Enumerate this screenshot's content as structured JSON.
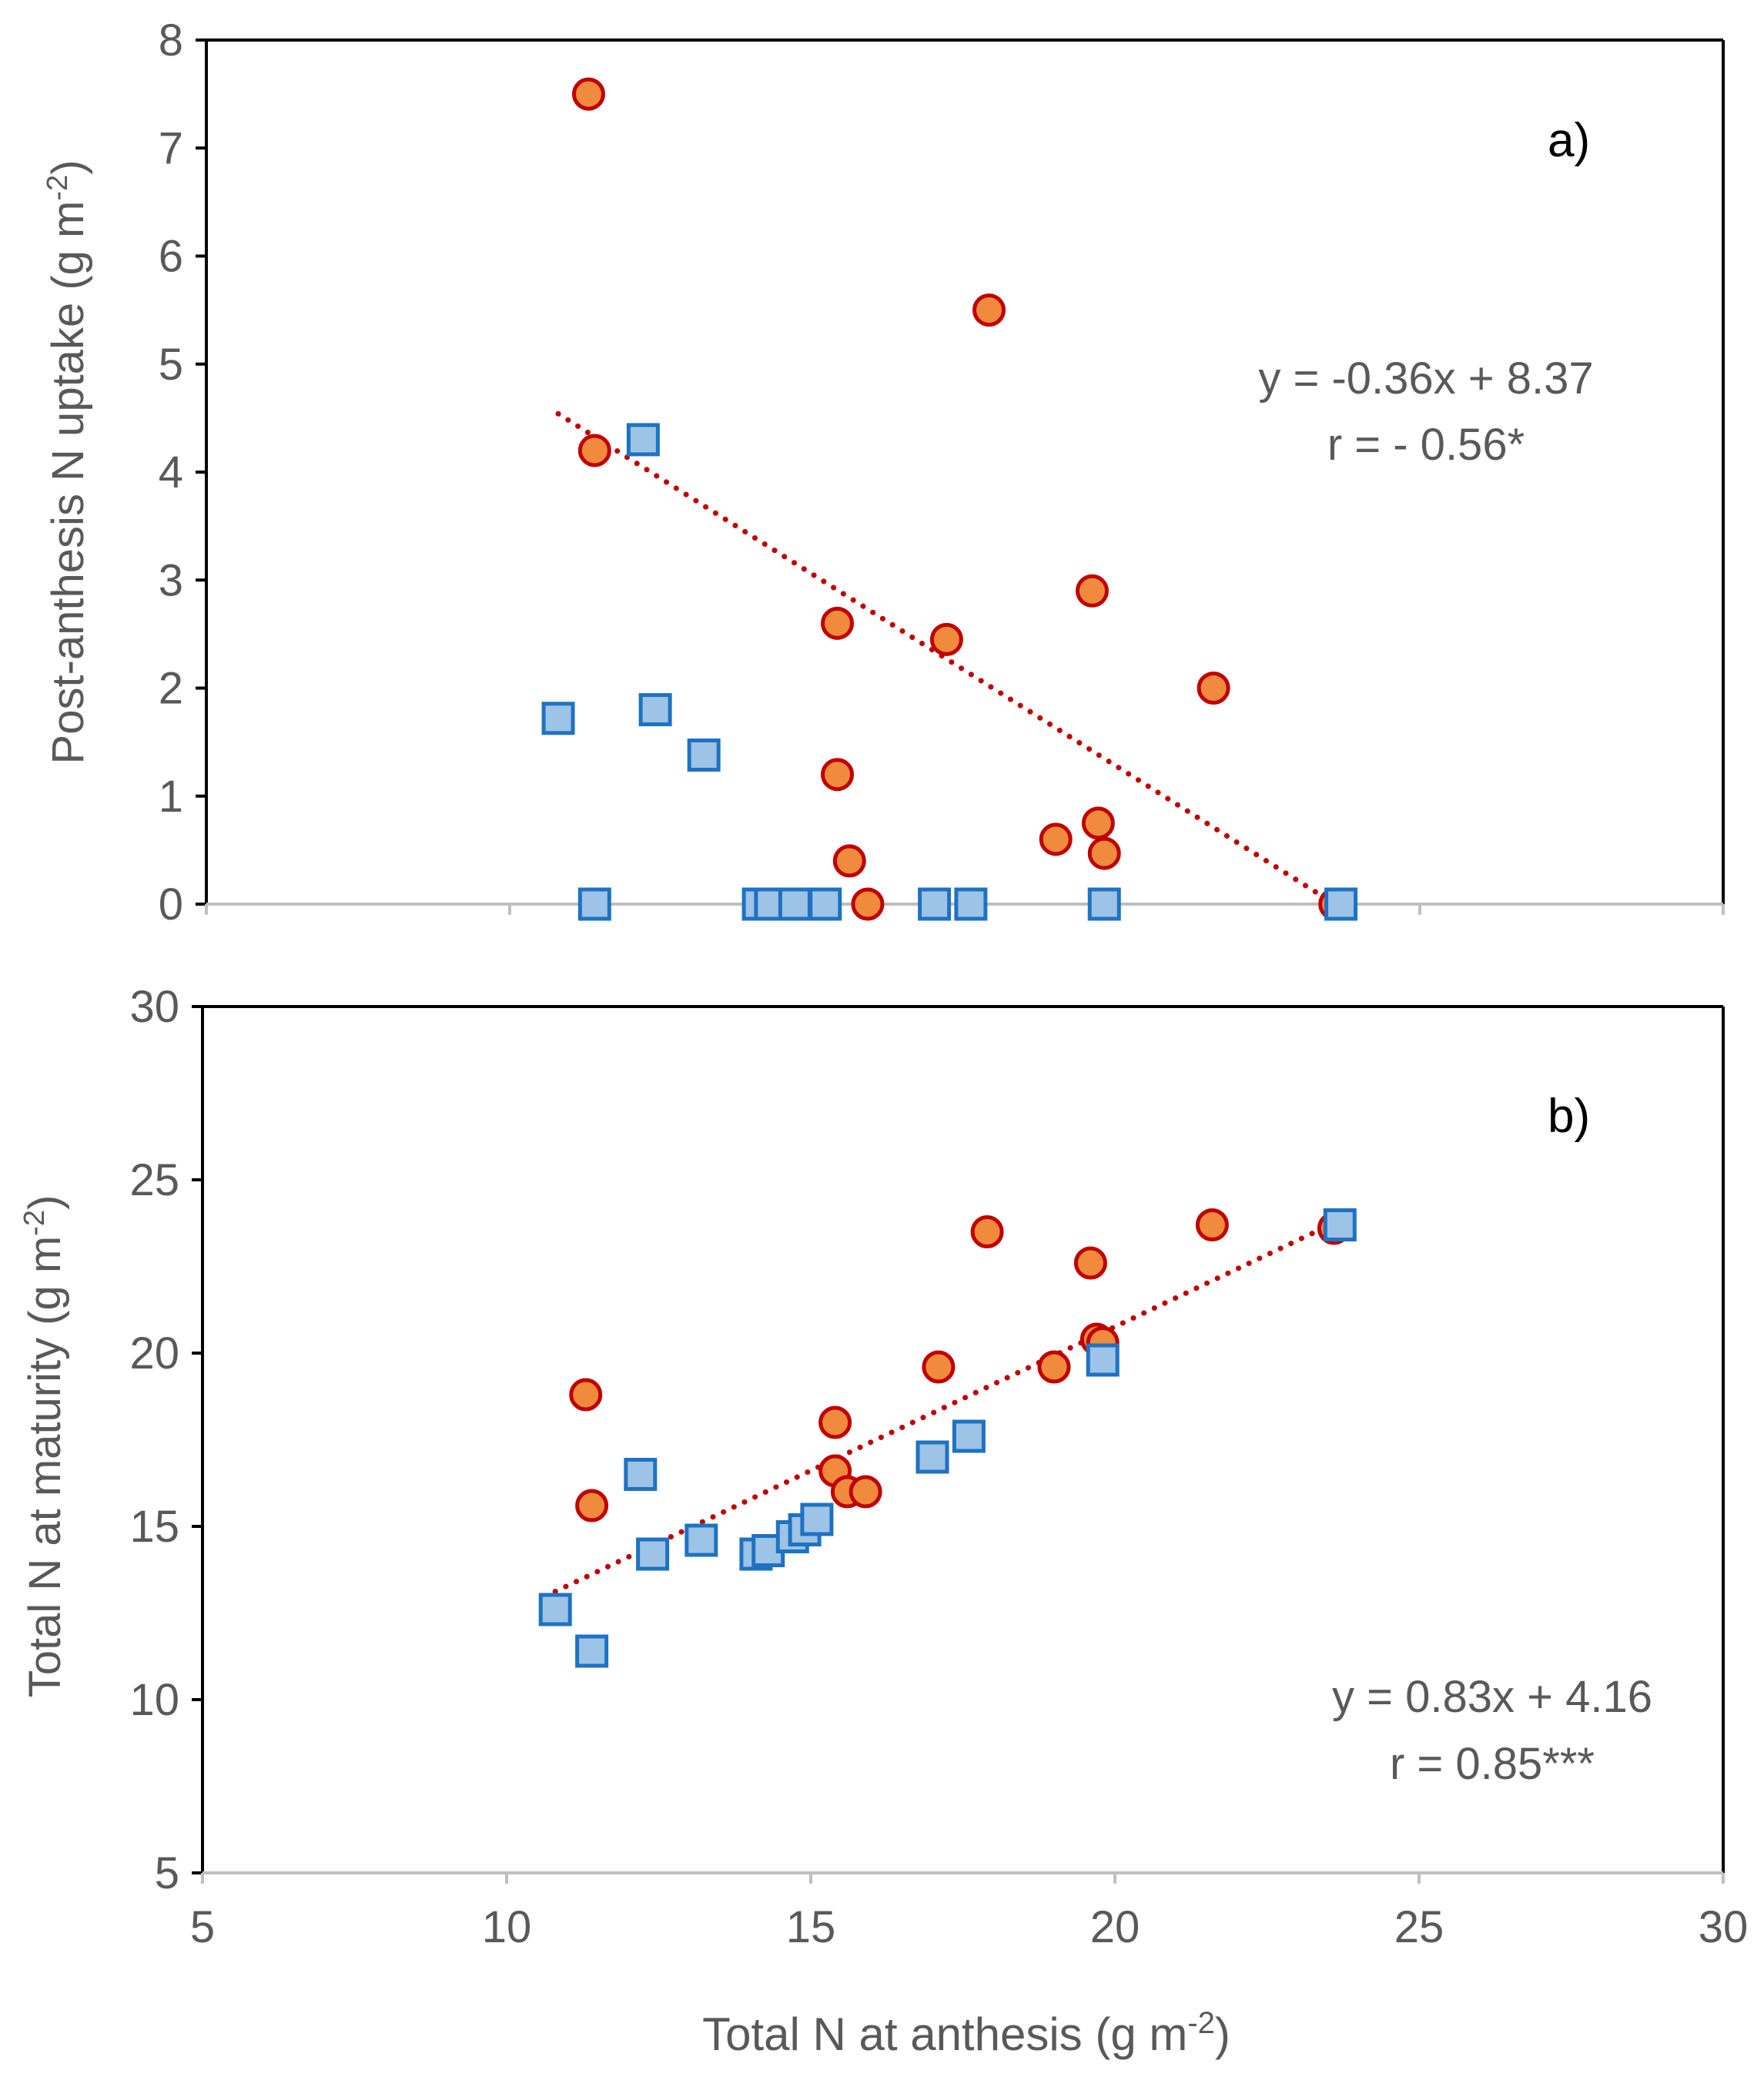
{
  "colors": {
    "circle_fill": "#f08a3c",
    "circle_stroke": "#c00000",
    "square_fill": "#9dc3e6",
    "square_stroke": "#1f72c2",
    "trendline": "#c00000",
    "axis_text": "#595959",
    "frame": "#000000",
    "axis_line": "#bfbfbf"
  },
  "xlabel_main": "Total N at anthesis (g m",
  "xlabel_sup": "-2",
  "xlabel_tail": ")",
  "chart_data": [
    {
      "type": "scatter",
      "panel_label": "a)",
      "ylabel_main": "Post-anthesis N uptake (g m",
      "ylabel_sup": "-2",
      "ylabel_tail": ")",
      "xlim": [
        5,
        30
      ],
      "ylim": [
        0,
        8
      ],
      "xticks": [
        "5",
        "10",
        "15",
        "20",
        "25",
        "30"
      ],
      "yticks": [
        "0",
        "1",
        "2",
        "3",
        "4",
        "5",
        "6",
        "7",
        "8"
      ],
      "equation": "y = -0.36x + 8.37",
      "r_text": "r = - 0.56*",
      "trendline": {
        "x": [
          10.8,
          23.6
        ],
        "y": [
          4.54,
          0.0
        ]
      },
      "series": [
        {
          "name": "circles",
          "marker": "circle",
          "x": [
            11.3,
            11.4,
            15.4,
            17.2,
            17.9,
            19.6,
            21.6,
            15.4,
            15.6,
            15.9,
            19.0,
            19.7,
            19.8,
            23.6
          ],
          "y": [
            7.5,
            4.2,
            2.6,
            2.45,
            5.5,
            2.9,
            2.0,
            1.2,
            0.4,
            0.0,
            0.6,
            0.75,
            0.47,
            0.0
          ]
        },
        {
          "name": "squares",
          "marker": "square",
          "x": [
            12.2,
            10.8,
            12.4,
            13.2,
            11.4,
            14.1,
            14.3,
            14.7,
            15.2,
            17.0,
            17.6,
            19.8,
            23.7
          ],
          "y": [
            4.3,
            1.72,
            1.8,
            1.38,
            0.0,
            0.0,
            0.0,
            0.0,
            0.0,
            0.0,
            0.0,
            0.0,
            0.0
          ]
        }
      ]
    },
    {
      "type": "scatter",
      "panel_label": "b)",
      "ylabel_main": "Total N at maturity (g m",
      "ylabel_sup": "-2",
      "ylabel_tail": ")",
      "xlim": [
        5,
        30
      ],
      "ylim": [
        5,
        30
      ],
      "xticks": [
        "5",
        "10",
        "15",
        "20",
        "25",
        "30"
      ],
      "yticks": [
        "5",
        "10",
        "15",
        "20",
        "25",
        "30"
      ],
      "equation": "y = 0.83x + 4.16",
      "r_text": "r = 0.85***",
      "trendline": {
        "x": [
          10.8,
          23.6
        ],
        "y": [
          13.12,
          23.75
        ]
      },
      "series": [
        {
          "name": "circles",
          "marker": "circle",
          "x": [
            11.3,
            11.4,
            15.4,
            15.4,
            15.6,
            15.9,
            17.1,
            17.9,
            19.0,
            19.6,
            19.7,
            19.8,
            21.6,
            23.6
          ],
          "y": [
            18.8,
            15.6,
            18.0,
            16.6,
            16.0,
            16.0,
            19.6,
            23.5,
            19.6,
            22.6,
            20.4,
            20.3,
            23.7,
            23.6
          ]
        },
        {
          "name": "squares",
          "marker": "square",
          "x": [
            10.8,
            11.4,
            12.2,
            12.4,
            13.2,
            14.1,
            14.3,
            14.7,
            14.9,
            15.1,
            17.0,
            17.6,
            19.8,
            23.7
          ],
          "y": [
            12.6,
            11.4,
            16.5,
            14.2,
            14.6,
            14.2,
            14.3,
            14.7,
            14.9,
            15.2,
            17.0,
            17.6,
            19.8,
            23.7
          ]
        }
      ]
    }
  ]
}
